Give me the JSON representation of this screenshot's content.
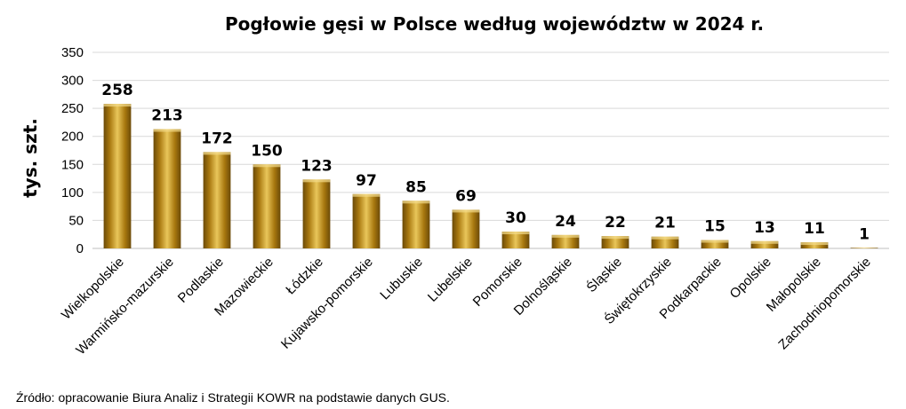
{
  "chart_data": {
    "type": "bar",
    "title": "Pogłowie gęsi w Polsce według województw w 2024 r.",
    "ylabel": "tys. szt.",
    "xlabel": "",
    "ylim": [
      0,
      350
    ],
    "yticks": [
      0,
      50,
      100,
      150,
      200,
      250,
      300,
      350
    ],
    "grid": true,
    "legend": "none",
    "categories": [
      "Wielkopolskie",
      "Warmińsko-mazurskie",
      "Podlaskie",
      "Mazowieckie",
      "Łódzkie",
      "Kujawsko-pomorskie",
      "Lubuskie",
      "Lubelskie",
      "Pomorskie",
      "Dolnośląskie",
      "Śląskie",
      "Świętokrzyskie",
      "Podkarpackie",
      "Opolskie",
      "Małopolskie",
      "Zachodniopomorskie"
    ],
    "values": [
      258,
      213,
      172,
      150,
      123,
      97,
      85,
      69,
      30,
      24,
      22,
      21,
      15,
      13,
      11,
      1
    ],
    "bar_color": "#b8860b"
  },
  "source": "Źródło: opracowanie Biura Analiz i Strategii KOWR na podstawie danych GUS."
}
